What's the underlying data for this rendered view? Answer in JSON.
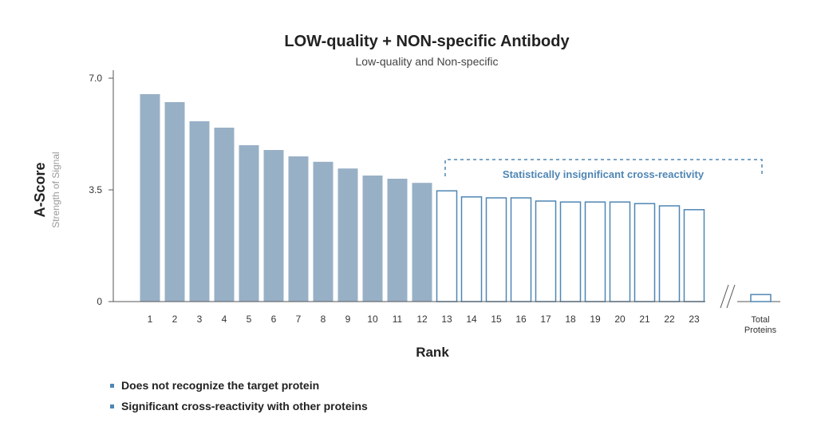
{
  "colors": {
    "filled_bar": "#98B0C6",
    "outline_bar": "#4F86B4",
    "annotation": "#4F86B4",
    "axis": "#555555",
    "title": "#222222",
    "subtitle": "#444444",
    "muted": "#999999",
    "bullet": "#4F86B4"
  },
  "chart_data": {
    "type": "bar",
    "title": "LOW-quality + NON-specific Antibody",
    "subtitle": "Low-quality and Non-specific",
    "ylabel": "A-Score",
    "ylabel_sub": "Strength of Signal",
    "xlabel": "Rank",
    "ylim": [
      0,
      7.0
    ],
    "yticks": [
      "7.0",
      "3.5",
      "0"
    ],
    "ytick_values": [
      7.0,
      3.5,
      0
    ],
    "categories": [
      "1",
      "2",
      "3",
      "4",
      "5",
      "6",
      "7",
      "8",
      "9",
      "10",
      "11",
      "12",
      "13",
      "14",
      "15",
      "16",
      "17",
      "18",
      "19",
      "20",
      "21",
      "22",
      "23"
    ],
    "values": [
      6.5,
      6.25,
      5.65,
      5.45,
      4.9,
      4.75,
      4.55,
      4.38,
      4.17,
      3.95,
      3.85,
      3.72,
      3.47,
      3.28,
      3.25,
      3.25,
      3.15,
      3.12,
      3.12,
      3.12,
      3.07,
      3.0,
      2.88
    ],
    "filled_count": 12,
    "annotation": "Statistically insignificant cross-reactivity",
    "annotation_start": 13,
    "total": {
      "label_line1": "Total",
      "label_line2": "Proteins",
      "value": 0.22
    },
    "axis_break": "//"
  },
  "legend_items": [
    "Does not recognize the target protein",
    "Significant cross-reactivity with other proteins"
  ]
}
